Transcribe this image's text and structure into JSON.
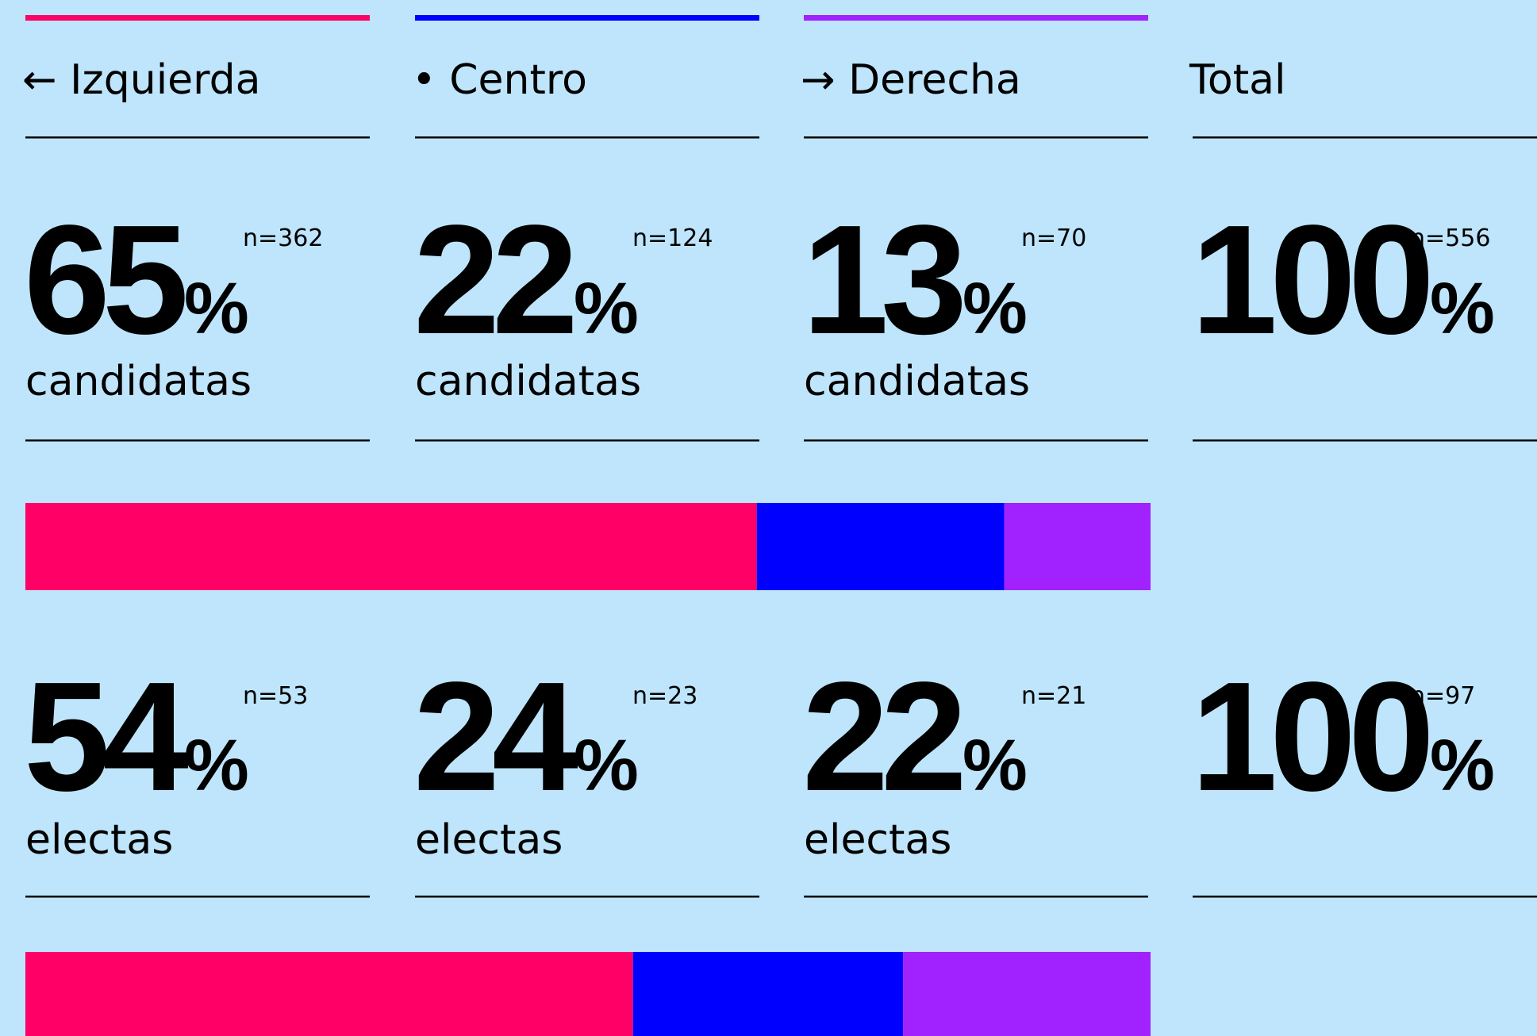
{
  "columns": [
    {
      "label": "← Izquierda",
      "color": "#ff0066"
    },
    {
      "label": "• Centro",
      "color": "#0000ff"
    },
    {
      "label": "→ Derecha",
      "color": "#a222ff"
    },
    {
      "label": "Total"
    }
  ],
  "unit": "%",
  "rows": [
    {
      "caption": "candidatas",
      "values": [
        65,
        22,
        13,
        100
      ],
      "n_labels": [
        "n=362",
        "n=124",
        "n=70",
        "n=556"
      ]
    },
    {
      "caption": "electas",
      "values": [
        54,
        24,
        22,
        100
      ],
      "n_labels": [
        "n=53",
        "n=23",
        "n=21",
        "n=97"
      ]
    }
  ]
}
